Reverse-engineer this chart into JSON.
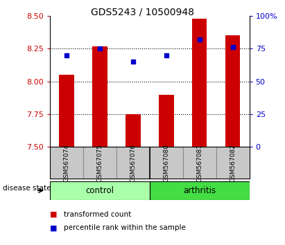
{
  "title": "GDS5243 / 10500948",
  "samples": [
    "GSM567074",
    "GSM567075",
    "GSM567076",
    "GSM567080",
    "GSM567081",
    "GSM567082"
  ],
  "bar_values": [
    8.05,
    8.27,
    7.75,
    7.9,
    8.48,
    8.35
  ],
  "percentile_values": [
    70,
    75,
    65,
    70,
    82,
    76
  ],
  "bar_color": "#cc0000",
  "percentile_color": "#0000cc",
  "ylim_left": [
    7.5,
    8.5
  ],
  "ylim_right": [
    0,
    100
  ],
  "yticks_left": [
    7.5,
    7.75,
    8.0,
    8.25,
    8.5
  ],
  "yticks_right": [
    0,
    25,
    50,
    75,
    100
  ],
  "grid_values": [
    7.75,
    8.0,
    8.25
  ],
  "control_color": "#aaffaa",
  "arthritis_color": "#44dd44",
  "tick_area_color": "#c8c8c8",
  "disease_state_label": "disease state",
  "control_label": "control",
  "arthritis_label": "arthritis",
  "legend_bar_label": "transformed count",
  "legend_pct_label": "percentile rank within the sample",
  "bar_bottom": 7.5,
  "bar_width": 0.45
}
